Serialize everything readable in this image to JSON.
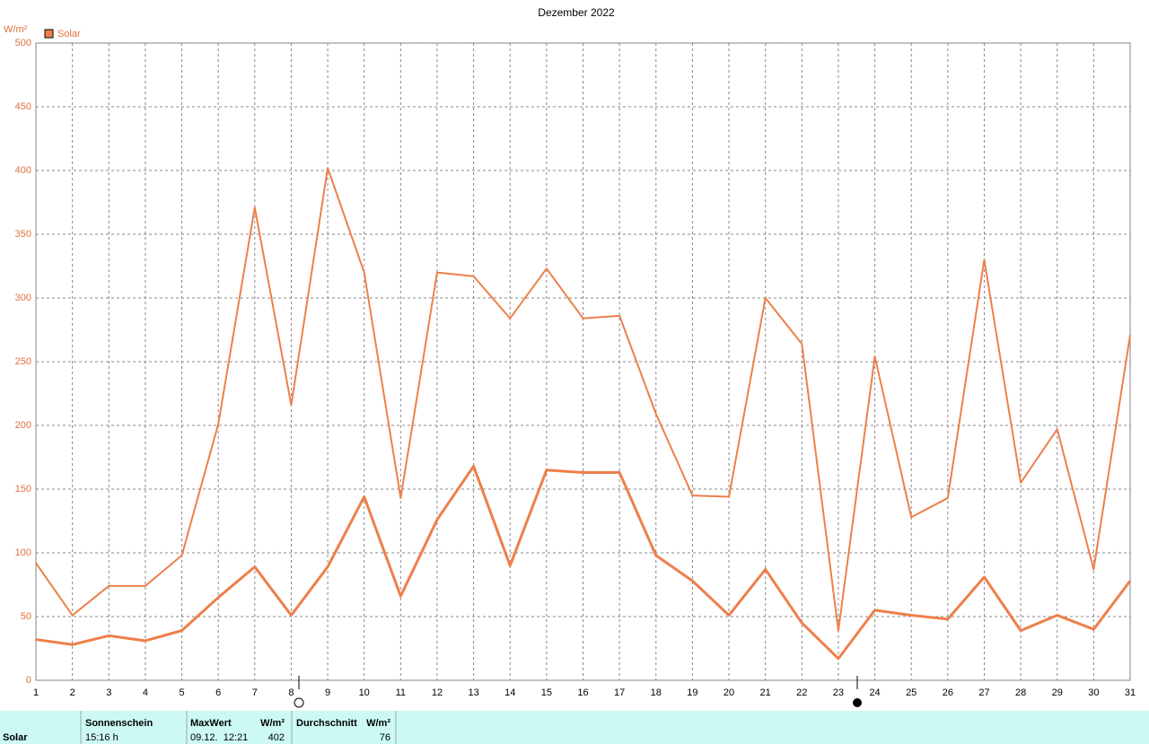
{
  "chart_data": {
    "type": "line",
    "title": "Dezember 2022",
    "y_label": "W/m²",
    "x": [
      1,
      2,
      3,
      4,
      5,
      6,
      7,
      8,
      9,
      10,
      11,
      12,
      13,
      14,
      15,
      16,
      17,
      18,
      19,
      20,
      21,
      22,
      23,
      24,
      25,
      26,
      27,
      28,
      29,
      30,
      31
    ],
    "xlim": [
      1,
      31
    ],
    "xticks": [
      1,
      2,
      3,
      4,
      5,
      6,
      7,
      8,
      9,
      10,
      11,
      12,
      13,
      14,
      15,
      16,
      17,
      18,
      19,
      20,
      21,
      22,
      23,
      24,
      25,
      26,
      27,
      28,
      29,
      30,
      31
    ],
    "ylim": [
      0,
      500
    ],
    "yticks": [
      0,
      50,
      100,
      150,
      200,
      250,
      300,
      350,
      400,
      450,
      500
    ],
    "grid": true,
    "series": [
      {
        "name": "Solar",
        "color": "#ee7f4a",
        "values": [
          92,
          51,
          74,
          74,
          98,
          201,
          371,
          216,
          402,
          320,
          143,
          320,
          317,
          284,
          323,
          284,
          286,
          209,
          145,
          144,
          300,
          264,
          39,
          254,
          128,
          143,
          330,
          155,
          197,
          87,
          271
        ]
      },
      {
        "color": "#ee7f4a",
        "values": [
          32,
          28,
          35,
          31,
          39,
          65,
          89,
          51,
          89,
          144,
          66,
          126,
          168,
          90,
          165,
          163,
          163,
          98,
          78,
          51,
          87,
          45,
          17,
          55,
          51,
          48,
          81,
          39,
          51,
          40,
          78
        ]
      }
    ]
  },
  "table": {
    "headers": [
      "Sonnenschein",
      "MaxWert",
      "W/m²",
      "Durchschnitt",
      "W/m²"
    ],
    "rows": [
      [
        "Solar",
        "15:16 h",
        "09.12.  12:21",
        402,
        76
      ]
    ]
  }
}
